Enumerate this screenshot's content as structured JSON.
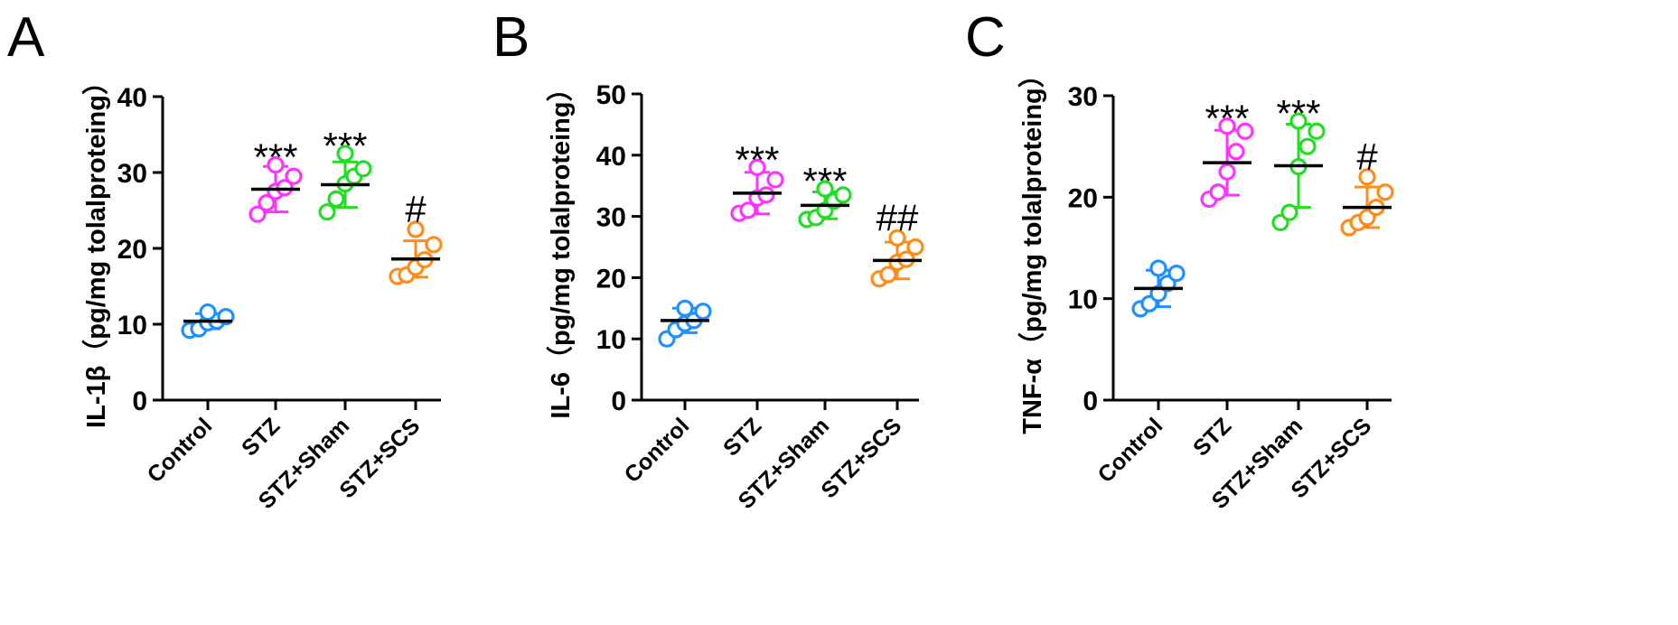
{
  "chart_data": [
    {
      "type": "scatter",
      "panel": "A",
      "ylabel": "IL-1β（pg/mg tolalproteing）",
      "ylim": [
        0,
        40
      ],
      "yticks": [
        "0",
        "10",
        "20",
        "30",
        "40"
      ],
      "categories": [
        "Control",
        "STZ",
        "STZ+Sham",
        "STZ+SCS"
      ],
      "colors": [
        "#1e90ff",
        "#ff33ff",
        "#22dd22",
        "#ff8c1a"
      ],
      "means": [
        10.4,
        27.8,
        28.4,
        18.6
      ],
      "sd": [
        1.0,
        3.0,
        3.0,
        2.4
      ],
      "points": [
        [
          9.2,
          9.4,
          10.2,
          10.4,
          11.0,
          11.6
        ],
        [
          24.5,
          26.0,
          27.5,
          28.0,
          29.5,
          31.0
        ],
        [
          24.8,
          26.5,
          28.5,
          29.5,
          30.5,
          32.5
        ],
        [
          16.3,
          16.5,
          17.5,
          18.5,
          20.5,
          22.5
        ]
      ],
      "significance": [
        "",
        "***",
        "***",
        "#"
      ]
    },
    {
      "type": "scatter",
      "panel": "B",
      "ylabel": "IL-6（pg/mg tolalproteing）",
      "ylim": [
        0,
        50
      ],
      "yticks": [
        "0",
        "10",
        "20",
        "30",
        "40",
        "50"
      ],
      "categories": [
        "Control",
        "STZ",
        "STZ+Sham",
        "STZ+SCS"
      ],
      "colors": [
        "#1e90ff",
        "#ff33ff",
        "#22dd22",
        "#ff8c1a"
      ],
      "means": [
        13.0,
        33.8,
        31.8,
        22.8
      ],
      "sd": [
        2.0,
        3.4,
        2.2,
        3.0
      ],
      "points": [
        [
          10.0,
          11.5,
          12.5,
          13.0,
          14.5,
          15.0
        ],
        [
          30.5,
          31.0,
          33.0,
          33.5,
          36.0,
          38.0
        ],
        [
          29.5,
          29.8,
          31.0,
          32.5,
          33.5,
          34.5
        ],
        [
          19.8,
          20.5,
          22.5,
          23.0,
          25.0,
          26.5
        ]
      ],
      "significance": [
        "",
        "***",
        "***",
        "##"
      ]
    },
    {
      "type": "scatter",
      "panel": "C",
      "ylabel": "TNF-α（pg/mg tolalproteing）",
      "ylim": [
        0,
        30
      ],
      "yticks": [
        "0",
        "10",
        "20",
        "30"
      ],
      "categories": [
        "Control",
        "STZ",
        "STZ+Sham",
        "STZ+SCS"
      ],
      "colors": [
        "#1e90ff",
        "#ff33ff",
        "#22dd22",
        "#ff8c1a"
      ],
      "means": [
        11.0,
        23.4,
        23.1,
        19.0
      ],
      "sd": [
        1.8,
        3.2,
        4.1,
        2.0
      ],
      "points": [
        [
          9.0,
          9.5,
          10.5,
          11.5,
          12.5,
          13.0
        ],
        [
          19.8,
          20.5,
          22.5,
          24.5,
          26.5,
          27.0
        ],
        [
          17.5,
          18.5,
          23.0,
          25.0,
          26.5,
          27.5
        ],
        [
          17.0,
          17.5,
          18.0,
          19.0,
          20.5,
          22.0
        ]
      ],
      "significance": [
        "",
        "***",
        "***",
        "#"
      ]
    }
  ]
}
